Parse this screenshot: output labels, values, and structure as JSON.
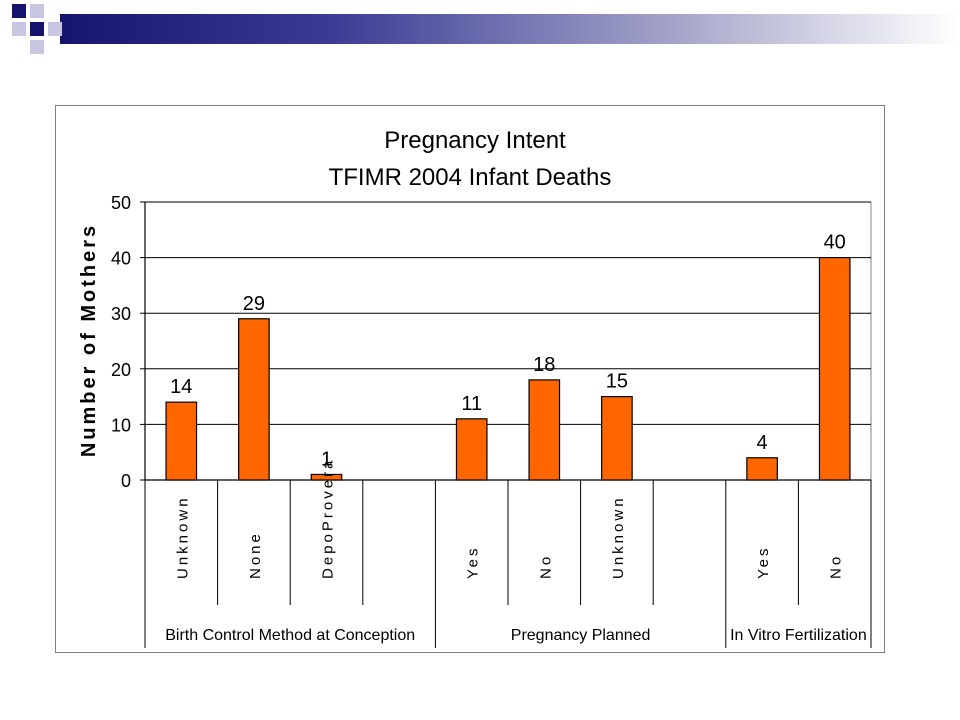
{
  "chart_data": {
    "type": "bar",
    "title": [
      "Pregnancy Intent",
      "TFIMR 2004 Infant Deaths"
    ],
    "ylabel": "Number of Mothers",
    "ylim": [
      0,
      50
    ],
    "yticks": [
      "0",
      "10",
      "20",
      "30",
      "40",
      "50"
    ],
    "grid": true,
    "bar_color": "#ff6600",
    "groups": [
      {
        "label": "Birth Control Method at Conception",
        "categories": [
          "Unknown",
          "None",
          "DepoProvera",
          ""
        ],
        "values": [
          14,
          29,
          1,
          null
        ]
      },
      {
        "label": "Pregnancy Planned",
        "categories": [
          "Yes",
          "No",
          "Unknown",
          ""
        ],
        "values": [
          11,
          18,
          15,
          null
        ]
      },
      {
        "label": "In Vitro Fertilization",
        "categories": [
          "Yes",
          "No"
        ],
        "values": [
          4,
          40
        ]
      }
    ]
  }
}
